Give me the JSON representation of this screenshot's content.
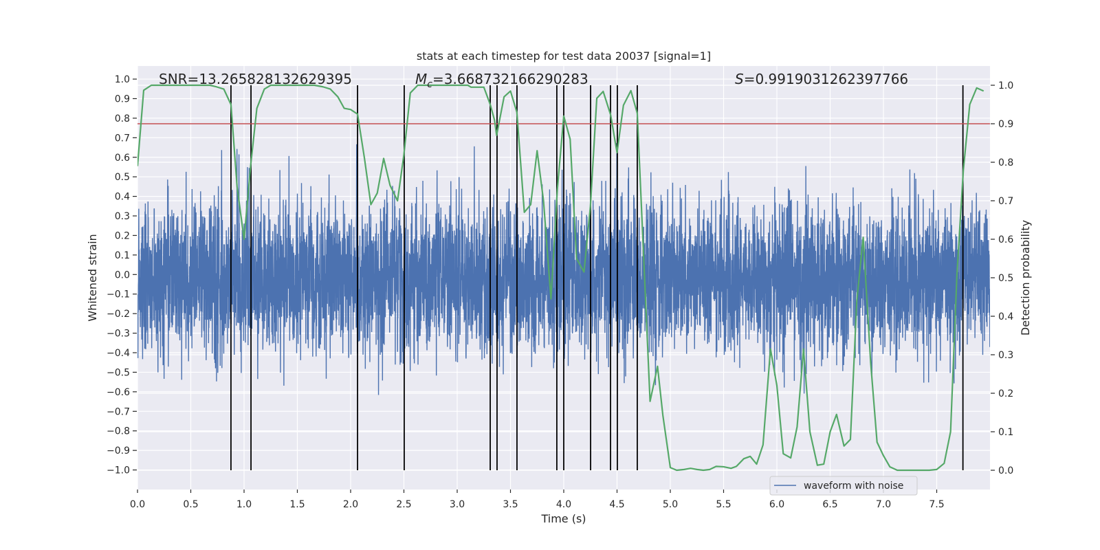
{
  "chart_data": {
    "type": "line",
    "title": "stats at each timestep for test data 20037 [signal=1]",
    "xlabel": "Time (s)",
    "ylabel_left": "Whitened strain",
    "ylabel_right": "Detection probability",
    "xlim": [
      0,
      8
    ],
    "ylim_left": [
      -1.1,
      1.067
    ],
    "ylim_right": [
      -0.05,
      1.05
    ],
    "grid": true,
    "xticks": [
      0,
      0.5,
      1,
      1.5,
      2,
      2.5,
      3,
      3.5,
      4,
      4.5,
      5,
      5.5,
      6,
      6.5,
      7,
      7.5
    ],
    "xtick_labels": [
      "0.0",
      "0.5",
      "1.0",
      "1.5",
      "2.0",
      "2.5",
      "3.0",
      "3.5",
      "4.0",
      "4.5",
      "5.0",
      "5.5",
      "6.0",
      "6.5",
      "7.0",
      "7.5"
    ],
    "yticks_left": [
      1.0,
      0.9,
      0.8,
      0.7,
      0.6,
      0.5,
      0.4,
      0.3,
      0.2,
      0.1,
      0.0,
      -0.1,
      -0.2,
      -0.3,
      -0.4,
      -0.5,
      -0.6,
      -0.7,
      -0.8,
      -0.9,
      -1.0
    ],
    "ytick_labels_left": [
      "1.0",
      "0.9",
      "0.8",
      "0.7",
      "0.6",
      "0.5",
      "0.4",
      "0.3",
      "0.2",
      "0.1",
      "0.0",
      "−0.1",
      "−0.2",
      "−0.3",
      "−0.4",
      "−0.5",
      "−0.6",
      "−0.7",
      "−0.8",
      "−0.9",
      "−1.0"
    ],
    "yticks_right": [
      1.0,
      0.9,
      0.8,
      0.7,
      0.6,
      0.5,
      0.4,
      0.3,
      0.2,
      0.1,
      0.0
    ],
    "ytick_labels_right": [
      "1.0",
      "0.9",
      "0.8",
      "0.7",
      "0.6",
      "0.5",
      "0.4",
      "0.3",
      "0.2",
      "0.1",
      "0.0"
    ],
    "annotations": {
      "snr": {
        "label": "SNR=",
        "value": "13.265828132629395"
      },
      "mc": {
        "symbol": "M",
        "subscript": "c",
        "value": "=3.668732166290283"
      },
      "s": {
        "symbol": "S",
        "value": "=0.9919031262397766"
      }
    },
    "waveform": {
      "label": "waveform with noise",
      "axis": "left",
      "color": "#4c72b0",
      "generator": {
        "samples": 6000,
        "std": 0.19,
        "seed": 20037,
        "clip": [
          -0.86,
          0.8
        ]
      }
    },
    "probability": {
      "axis": "right",
      "color": "#55a868",
      "points": [
        [
          0.0,
          0.79
        ],
        [
          0.058,
          0.987
        ],
        [
          0.13,
          1.0
        ],
        [
          0.68,
          1.0
        ],
        [
          0.74,
          0.996
        ],
        [
          0.81,
          0.99
        ],
        [
          0.877,
          0.95
        ],
        [
          0.935,
          0.735
        ],
        [
          1.0,
          0.6
        ],
        [
          1.065,
          0.8
        ],
        [
          1.12,
          0.94
        ],
        [
          1.19,
          0.99
        ],
        [
          1.25,
          1.0
        ],
        [
          1.66,
          1.0
        ],
        [
          1.74,
          0.996
        ],
        [
          1.81,
          0.99
        ],
        [
          1.88,
          0.97
        ],
        [
          1.94,
          0.94
        ],
        [
          2.0,
          0.937
        ],
        [
          2.065,
          0.925
        ],
        [
          2.13,
          0.81
        ],
        [
          2.19,
          0.69
        ],
        [
          2.25,
          0.72
        ],
        [
          2.31,
          0.81
        ],
        [
          2.37,
          0.74
        ],
        [
          2.44,
          0.7
        ],
        [
          2.5,
          0.82
        ],
        [
          2.56,
          0.98
        ],
        [
          2.63,
          1.0
        ],
        [
          3.1,
          1.0
        ],
        [
          3.13,
          0.995
        ],
        [
          3.25,
          0.995
        ],
        [
          3.31,
          0.95
        ],
        [
          3.35,
          0.91
        ],
        [
          3.37,
          0.87
        ],
        [
          3.44,
          0.97
        ],
        [
          3.5,
          0.985
        ],
        [
          3.56,
          0.93
        ],
        [
          3.63,
          0.67
        ],
        [
          3.69,
          0.69
        ],
        [
          3.75,
          0.83
        ],
        [
          3.81,
          0.7
        ],
        [
          3.88,
          0.445
        ],
        [
          3.94,
          0.73
        ],
        [
          4.0,
          0.92
        ],
        [
          4.06,
          0.86
        ],
        [
          4.12,
          0.55
        ],
        [
          4.19,
          0.515
        ],
        [
          4.25,
          0.685
        ],
        [
          4.31,
          0.966
        ],
        [
          4.37,
          0.984
        ],
        [
          4.44,
          0.923
        ],
        [
          4.5,
          0.825
        ],
        [
          4.56,
          0.948
        ],
        [
          4.63,
          0.986
        ],
        [
          4.69,
          0.927
        ],
        [
          4.81,
          0.179
        ],
        [
          4.88,
          0.27
        ],
        [
          4.93,
          0.143
        ],
        [
          5.0,
          0.007
        ],
        [
          5.06,
          0.0
        ],
        [
          5.13,
          0.002
        ],
        [
          5.19,
          0.005
        ],
        [
          5.25,
          0.002
        ],
        [
          5.31,
          0.0
        ],
        [
          5.37,
          0.002
        ],
        [
          5.43,
          0.01
        ],
        [
          5.5,
          0.009
        ],
        [
          5.57,
          0.005
        ],
        [
          5.62,
          0.01
        ],
        [
          5.69,
          0.03
        ],
        [
          5.75,
          0.036
        ],
        [
          5.81,
          0.016
        ],
        [
          5.87,
          0.066
        ],
        [
          5.94,
          0.315
        ],
        [
          6.0,
          0.22
        ],
        [
          6.06,
          0.043
        ],
        [
          6.13,
          0.032
        ],
        [
          6.19,
          0.113
        ],
        [
          6.25,
          0.315
        ],
        [
          6.31,
          0.1
        ],
        [
          6.38,
          0.013
        ],
        [
          6.44,
          0.016
        ],
        [
          6.5,
          0.1
        ],
        [
          6.56,
          0.145
        ],
        [
          6.63,
          0.063
        ],
        [
          6.69,
          0.08
        ],
        [
          6.75,
          0.44
        ],
        [
          6.81,
          0.605
        ],
        [
          6.88,
          0.28
        ],
        [
          6.94,
          0.073
        ],
        [
          7.0,
          0.038
        ],
        [
          7.06,
          0.009
        ],
        [
          7.13,
          0.0
        ],
        [
          7.43,
          0.0
        ],
        [
          7.5,
          0.002
        ],
        [
          7.57,
          0.018
        ],
        [
          7.63,
          0.1
        ],
        [
          7.69,
          0.51
        ],
        [
          7.75,
          0.78
        ],
        [
          7.81,
          0.95
        ],
        [
          7.875,
          0.993
        ],
        [
          7.94,
          0.985
        ]
      ]
    },
    "threshold": {
      "value": 0.9,
      "axis": "right",
      "color": "#c44e52"
    },
    "vlines": {
      "axis": "right",
      "span": [
        0,
        1
      ],
      "color": "#000000",
      "x": [
        0.877,
        1.065,
        2.065,
        2.503,
        3.31,
        3.374,
        3.561,
        3.935,
        4.0,
        4.252,
        4.439,
        4.503,
        4.69,
        7.746
      ]
    },
    "legend": {
      "entries": [
        "waveform with noise"
      ],
      "placement": "lower-right"
    },
    "style": {
      "background": "#eaeaf2",
      "grid_color": "#ffffff",
      "text_color": "#262626"
    }
  }
}
